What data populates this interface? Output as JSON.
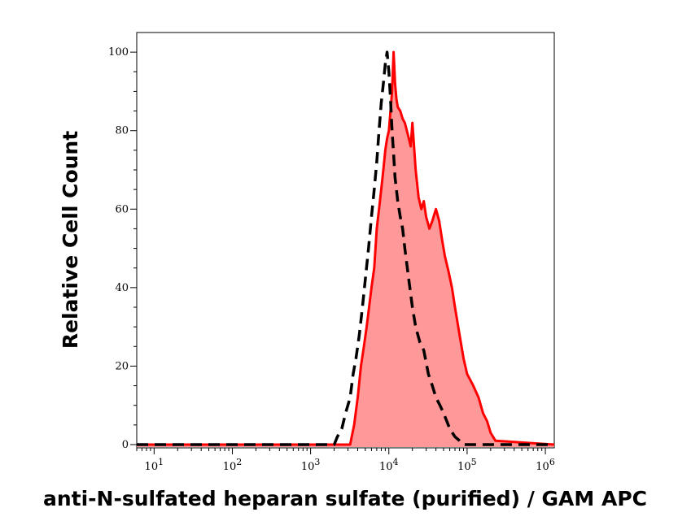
{
  "chart_data": {
    "type": "area",
    "xlabel": "anti-N-sulfated heparan sulfate (purified) / GAM APC",
    "ylabel": "Relative Cell Count",
    "xscale": "log",
    "xlim": [
      6,
      1300000
    ],
    "ylim": [
      0,
      105
    ],
    "x_tick_labels": [
      {
        "value": 10,
        "label": "10",
        "exp": "1"
      },
      {
        "value": 100,
        "label": "10",
        "exp": "2"
      },
      {
        "value": 1000,
        "label": "10",
        "exp": "3"
      },
      {
        "value": 10000,
        "label": "10",
        "exp": "4"
      },
      {
        "value": 100000,
        "label": "10",
        "exp": "5"
      },
      {
        "value": 1000000,
        "label": "10",
        "exp": "6"
      }
    ],
    "y_ticks": [
      0,
      20,
      40,
      60,
      80,
      100
    ],
    "grid": false,
    "series": [
      {
        "style": "dashed-line",
        "color": "#000000",
        "x": [
          6,
          100,
          1000,
          2000,
          2200,
          2500,
          2800,
          3200,
          3500,
          3800,
          4200,
          4600,
          5000,
          5500,
          6000,
          6500,
          7000,
          7500,
          8000,
          8500,
          9000,
          9500,
          10000,
          10500,
          11000,
          11500,
          12000,
          13000,
          14000,
          15000,
          16000,
          18000,
          20000,
          22000,
          25000,
          28000,
          32000,
          36000,
          40000,
          45000,
          50000,
          55000,
          60000,
          70000,
          80000,
          90000,
          100000,
          1300000
        ],
        "y": [
          0,
          0,
          0,
          0,
          2,
          4,
          8,
          12,
          18,
          22,
          28,
          35,
          42,
          50,
          58,
          65,
          72,
          80,
          87,
          92,
          97,
          100,
          95,
          88,
          80,
          74,
          68,
          62,
          58,
          55,
          50,
          42,
          35,
          30,
          26,
          24,
          18,
          15,
          12,
          10,
          8,
          6,
          4,
          2,
          1,
          0,
          0,
          0
        ]
      },
      {
        "style": "filled-area",
        "color": "#ff0000",
        "fill": "#ff9999",
        "x": [
          6,
          100,
          1000,
          3200,
          3600,
          4000,
          4400,
          4800,
          5200,
          5600,
          6000,
          6500,
          7000,
          7500,
          8000,
          8500,
          9000,
          9500,
          10000,
          10500,
          11000,
          11500,
          12000,
          12500,
          13000,
          14000,
          15000,
          16000,
          17000,
          18000,
          19000,
          20000,
          22000,
          24000,
          26000,
          28000,
          30000,
          33000,
          36000,
          40000,
          44000,
          48000,
          52000,
          58000,
          64000,
          70000,
          80000,
          90000,
          100000,
          120000,
          140000,
          160000,
          180000,
          200000,
          230000,
          1300000
        ],
        "y": [
          0,
          0,
          0,
          0,
          5,
          12,
          20,
          25,
          30,
          35,
          40,
          45,
          55,
          60,
          65,
          70,
          75,
          78,
          80,
          85,
          90,
          100,
          92,
          88,
          86,
          85,
          83,
          82,
          80,
          78,
          76,
          82,
          70,
          63,
          60,
          62,
          58,
          55,
          57,
          60,
          57,
          52,
          48,
          44,
          40,
          35,
          28,
          22,
          18,
          15,
          12,
          8,
          6,
          3,
          1,
          0
        ]
      }
    ]
  }
}
